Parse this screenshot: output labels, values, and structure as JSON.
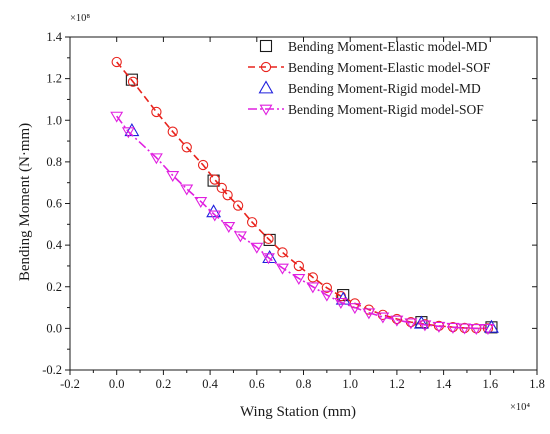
{
  "chart_data": {
    "type": "line",
    "xlabel": "Wing Station (mm)",
    "ylabel": "Bending Moment (N·mm)",
    "x_multiplier": "×10⁴",
    "y_multiplier": "×10⁸",
    "xlim": [
      -0.2,
      1.8
    ],
    "ylim": [
      -0.2,
      1.4
    ],
    "xticks": [
      "-0.2",
      "0.0",
      "0.2",
      "0.4",
      "0.6",
      "0.8",
      "1.0",
      "1.2",
      "1.4",
      "1.6",
      "1.8"
    ],
    "yticks": [
      "-0.2",
      "0.0",
      "0.2",
      "0.4",
      "0.6",
      "0.8",
      "1.0",
      "1.2",
      "1.4"
    ],
    "grid": false,
    "legend_position": "top-right",
    "series": [
      {
        "name": "Bending Moment-Elastic model-MD",
        "color": "#1a1a1a",
        "marker": "square",
        "line": "none",
        "x": [
          0.065,
          0.415,
          0.655,
          0.97,
          1.305,
          1.605
        ],
        "y": [
          1.195,
          0.71,
          0.425,
          0.16,
          0.03,
          0.005
        ]
      },
      {
        "name": "Bending Moment-Elastic model-SOF",
        "color": "#e8231d",
        "marker": "circle",
        "line": "dashed",
        "x": [
          0.0,
          0.07,
          0.17,
          0.24,
          0.3,
          0.37,
          0.42,
          0.45,
          0.475,
          0.52,
          0.58,
          0.65,
          0.71,
          0.78,
          0.84,
          0.9,
          0.96,
          1.02,
          1.08,
          1.14,
          1.2,
          1.26,
          1.32,
          1.38,
          1.44,
          1.49,
          1.54,
          1.59
        ],
        "y": [
          1.28,
          1.185,
          1.04,
          0.945,
          0.87,
          0.785,
          0.715,
          0.675,
          0.64,
          0.59,
          0.51,
          0.43,
          0.365,
          0.3,
          0.245,
          0.195,
          0.155,
          0.12,
          0.09,
          0.065,
          0.045,
          0.03,
          0.02,
          0.012,
          0.006,
          0.002,
          0.0,
          0.0
        ]
      },
      {
        "name": "Bending Moment-Rigid model-MD",
        "color": "#2020dd",
        "marker": "triangle-up",
        "line": "none",
        "x": [
          0.065,
          0.415,
          0.655,
          0.97,
          1.305,
          1.605
        ],
        "y": [
          0.95,
          0.56,
          0.34,
          0.14,
          0.025,
          0.005
        ]
      },
      {
        "name": "Bending Moment-Rigid model-SOF",
        "color": "#e020e0",
        "marker": "triangle-down",
        "line": "dash-dot",
        "x": [
          0.0,
          0.05,
          0.17,
          0.24,
          0.3,
          0.36,
          0.42,
          0.48,
          0.53,
          0.6,
          0.65,
          0.71,
          0.78,
          0.84,
          0.9,
          0.96,
          1.02,
          1.08,
          1.14,
          1.2,
          1.26,
          1.32,
          1.38,
          1.44,
          1.49,
          1.54,
          1.59
        ],
        "y": [
          1.02,
          0.945,
          0.82,
          0.735,
          0.67,
          0.61,
          0.545,
          0.49,
          0.445,
          0.39,
          0.34,
          0.29,
          0.24,
          0.2,
          0.16,
          0.125,
          0.1,
          0.075,
          0.055,
          0.04,
          0.027,
          0.017,
          0.01,
          0.005,
          0.002,
          0.0,
          0.0
        ]
      }
    ]
  }
}
